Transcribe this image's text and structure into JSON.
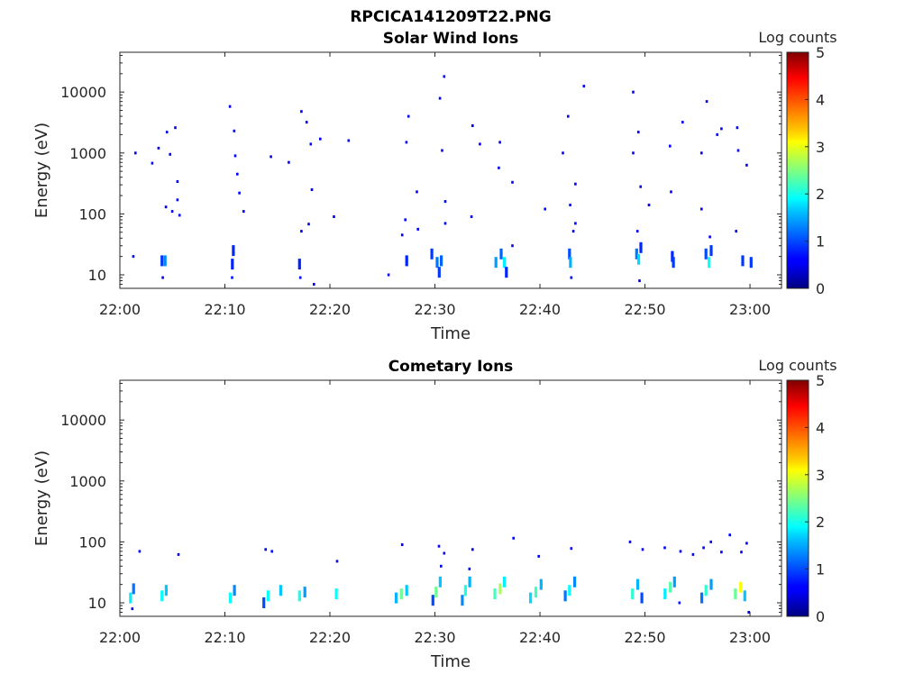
{
  "figure": {
    "title": "RPCICA141209T22.PNG"
  },
  "chart_data": [
    {
      "type": "heatmap",
      "title": "Solar Wind Ions",
      "xlabel": "Time",
      "ylabel": "Energy (eV)",
      "x_ticks": [
        "22:00",
        "22:10",
        "22:20",
        "22:30",
        "22:40",
        "22:50",
        "23:00"
      ],
      "x_tick_minutes": [
        0,
        10,
        20,
        30,
        40,
        50,
        60
      ],
      "xlim_minutes": [
        0,
        63
      ],
      "y_scale": "log",
      "y_ticks": [
        "10",
        "100",
        "1000",
        "10000"
      ],
      "y_tick_values": [
        10,
        100,
        1000,
        10000
      ],
      "ylim": [
        6,
        45000
      ],
      "colorbar": {
        "label": "Log counts",
        "ticks": [
          "0",
          "1",
          "2",
          "3",
          "4",
          "5"
        ],
        "range": [
          0,
          5
        ],
        "colormap": "jet"
      },
      "cells": [
        [
          1.3,
          20,
          0.7
        ],
        [
          4.0,
          17,
          0.9
        ],
        [
          4.3,
          17,
          1.3
        ],
        [
          4.1,
          9,
          0.6
        ],
        [
          10.7,
          15,
          0.8
        ],
        [
          10.7,
          9,
          0.7
        ],
        [
          10.8,
          25,
          0.8
        ],
        [
          17.1,
          15,
          0.8
        ],
        [
          17.2,
          9,
          0.6
        ],
        [
          18.5,
          7,
          0.6
        ],
        [
          25.6,
          10,
          0.6
        ],
        [
          27.3,
          17,
          0.8
        ],
        [
          29.7,
          22,
          0.9
        ],
        [
          30.2,
          16,
          1.2
        ],
        [
          30.4,
          11,
          0.9
        ],
        [
          30.6,
          17,
          1.1
        ],
        [
          35.8,
          16,
          1.4
        ],
        [
          36.3,
          22,
          1.1
        ],
        [
          36.6,
          16,
          1.8
        ],
        [
          36.8,
          11,
          0.8
        ],
        [
          42.8,
          22,
          1.0
        ],
        [
          42.9,
          16,
          1.5
        ],
        [
          43.0,
          9,
          0.6
        ],
        [
          49.2,
          22,
          1.2
        ],
        [
          49.4,
          18,
          1.7
        ],
        [
          49.6,
          28,
          0.8
        ],
        [
          49.5,
          8,
          0.4
        ],
        [
          52.6,
          20,
          0.8
        ],
        [
          52.7,
          16,
          0.9
        ],
        [
          55.8,
          22,
          1.0
        ],
        [
          56.1,
          16,
          1.9
        ],
        [
          56.3,
          25,
          0.9
        ],
        [
          59.3,
          17,
          0.9
        ],
        [
          60.1,
          16,
          0.9
        ],
        [
          1.5,
          1000,
          0.6
        ],
        [
          3.1,
          680,
          0.6
        ],
        [
          3.7,
          1200,
          0.6
        ],
        [
          4.8,
          950,
          0.6
        ],
        [
          4.5,
          2200,
          0.6
        ],
        [
          5.3,
          2600,
          0.6
        ],
        [
          5.5,
          340,
          0.6
        ],
        [
          5.5,
          170,
          0.6
        ],
        [
          4.4,
          130,
          0.6
        ],
        [
          5.0,
          110,
          0.6
        ],
        [
          5.7,
          95,
          0.6
        ],
        [
          10.5,
          5800,
          0.6
        ],
        [
          10.9,
          2300,
          0.6
        ],
        [
          11.0,
          900,
          0.6
        ],
        [
          11.2,
          450,
          0.6
        ],
        [
          11.4,
          220,
          0.6
        ],
        [
          11.8,
          110,
          0.6
        ],
        [
          14.4,
          870,
          0.6
        ],
        [
          16.1,
          700,
          0.6
        ],
        [
          17.3,
          4800,
          0.6
        ],
        [
          17.8,
          3200,
          0.6
        ],
        [
          18.2,
          1400,
          0.6
        ],
        [
          19.1,
          1700,
          0.6
        ],
        [
          20.4,
          90,
          0.6
        ],
        [
          21.8,
          1600,
          0.6
        ],
        [
          18.3,
          250,
          0.6
        ],
        [
          27.5,
          4000,
          0.6
        ],
        [
          27.3,
          1500,
          0.6
        ],
        [
          28.3,
          230,
          0.6
        ],
        [
          30.5,
          7900,
          0.6
        ],
        [
          30.9,
          18000,
          0.6
        ],
        [
          30.7,
          1100,
          0.6
        ],
        [
          31.0,
          160,
          0.6
        ],
        [
          33.6,
          2800,
          0.6
        ],
        [
          34.3,
          1400,
          0.6
        ],
        [
          33.5,
          90,
          0.6
        ],
        [
          36.2,
          1500,
          0.6
        ],
        [
          36.1,
          570,
          0.6
        ],
        [
          37.4,
          330,
          0.6
        ],
        [
          37.4,
          30,
          0.6
        ],
        [
          42.2,
          1000,
          0.6
        ],
        [
          42.7,
          4000,
          0.6
        ],
        [
          43.4,
          310,
          0.6
        ],
        [
          42.9,
          140,
          0.6
        ],
        [
          44.2,
          12500,
          0.6
        ],
        [
          40.5,
          120,
          0.6
        ],
        [
          48.9,
          10000,
          0.6
        ],
        [
          48.9,
          1000,
          0.6
        ],
        [
          49.4,
          2200,
          0.6
        ],
        [
          49.6,
          280,
          0.6
        ],
        [
          50.4,
          140,
          0.6
        ],
        [
          52.4,
          1300,
          0.6
        ],
        [
          52.5,
          230,
          0.6
        ],
        [
          53.6,
          3200,
          0.6
        ],
        [
          55.4,
          1000,
          0.6
        ],
        [
          55.9,
          7000,
          0.6
        ],
        [
          56.9,
          2000,
          0.6
        ],
        [
          57.3,
          2500,
          0.6
        ],
        [
          58.8,
          2600,
          0.6
        ],
        [
          58.9,
          1100,
          0.6
        ],
        [
          59.7,
          630,
          0.6
        ],
        [
          58.7,
          52,
          0.6
        ],
        [
          56.2,
          42,
          0.6
        ],
        [
          55.4,
          120,
          0.6
        ],
        [
          49.3,
          52,
          0.6
        ],
        [
          43.2,
          52,
          0.6
        ],
        [
          43.4,
          70,
          0.6
        ],
        [
          28.4,
          56,
          0.6
        ],
        [
          27.2,
          80,
          0.6
        ],
        [
          26.9,
          45,
          0.6
        ],
        [
          31.0,
          70,
          0.6
        ],
        [
          18.0,
          68,
          0.6
        ],
        [
          17.3,
          52,
          0.6
        ]
      ]
    },
    {
      "type": "heatmap",
      "title": "Cometary Ions",
      "xlabel": "Time",
      "ylabel": "Energy (eV)",
      "x_ticks": [
        "22:00",
        "22:10",
        "22:20",
        "22:30",
        "22:40",
        "22:50",
        "23:00"
      ],
      "x_tick_minutes": [
        0,
        10,
        20,
        30,
        40,
        50,
        60
      ],
      "xlim_minutes": [
        0,
        63
      ],
      "y_scale": "log",
      "y_ticks": [
        "10",
        "100",
        "1000",
        "10000"
      ],
      "y_tick_values": [
        10,
        100,
        1000,
        10000
      ],
      "ylim": [
        6,
        45000
      ],
      "colorbar": {
        "label": "Log counts",
        "ticks": [
          "0",
          "1",
          "2",
          "3",
          "4",
          "5"
        ],
        "range": [
          0,
          5
        ],
        "colormap": "jet"
      },
      "cells": [
        [
          1.0,
          12,
          1.8
        ],
        [
          1.3,
          17,
          1.2
        ],
        [
          1.2,
          8,
          0.6
        ],
        [
          4.0,
          13,
          1.9
        ],
        [
          4.4,
          16,
          1.6
        ],
        [
          10.5,
          12,
          1.9
        ],
        [
          10.9,
          16,
          1.3
        ],
        [
          13.7,
          10,
          1.0
        ],
        [
          14.1,
          13,
          1.9
        ],
        [
          15.3,
          16,
          1.6
        ],
        [
          17.1,
          13,
          2.0
        ],
        [
          17.6,
          15,
          1.4
        ],
        [
          20.6,
          14,
          1.9
        ],
        [
          26.3,
          12,
          1.5
        ],
        [
          26.8,
          14,
          2.4
        ],
        [
          27.3,
          16,
          1.6
        ],
        [
          29.8,
          11,
          1.0
        ],
        [
          30.1,
          15,
          2.4
        ],
        [
          30.5,
          22,
          1.6
        ],
        [
          32.6,
          11,
          1.3
        ],
        [
          32.9,
          16,
          2.0
        ],
        [
          33.3,
          22,
          1.5
        ],
        [
          35.7,
          14,
          2.2
        ],
        [
          36.2,
          17,
          2.7
        ],
        [
          36.6,
          22,
          1.8
        ],
        [
          39.1,
          12,
          1.7
        ],
        [
          39.6,
          15,
          2.2
        ],
        [
          40.1,
          20,
          1.5
        ],
        [
          42.4,
          13,
          1.2
        ],
        [
          42.8,
          16,
          1.9
        ],
        [
          43.3,
          22,
          1.3
        ],
        [
          48.8,
          14,
          2.1
        ],
        [
          49.3,
          20,
          1.5
        ],
        [
          49.7,
          12,
          1.0
        ],
        [
          51.9,
          14,
          1.8
        ],
        [
          52.4,
          18,
          2.3
        ],
        [
          52.8,
          22,
          1.4
        ],
        [
          55.4,
          12,
          1.2
        ],
        [
          55.8,
          16,
          2.1
        ],
        [
          56.3,
          20,
          1.4
        ],
        [
          58.6,
          14,
          2.4
        ],
        [
          59.1,
          18,
          3.1
        ],
        [
          59.5,
          13,
          1.6
        ],
        [
          59.9,
          7,
          0.5
        ],
        [
          53.3,
          10,
          0.7
        ],
        [
          1.9,
          70,
          0.6
        ],
        [
          5.6,
          62,
          0.6
        ],
        [
          13.9,
          75,
          0.6
        ],
        [
          14.5,
          70,
          0.6
        ],
        [
          20.7,
          48,
          0.6
        ],
        [
          26.9,
          90,
          0.6
        ],
        [
          30.4,
          85,
          0.6
        ],
        [
          30.9,
          65,
          0.6
        ],
        [
          30.6,
          40,
          0.6
        ],
        [
          33.3,
          36,
          0.6
        ],
        [
          33.6,
          75,
          0.6
        ],
        [
          37.5,
          115,
          0.6
        ],
        [
          39.9,
          58,
          0.6
        ],
        [
          43.0,
          78,
          0.6
        ],
        [
          48.6,
          100,
          0.6
        ],
        [
          49.8,
          75,
          0.6
        ],
        [
          51.9,
          80,
          0.6
        ],
        [
          53.4,
          70,
          0.6
        ],
        [
          54.6,
          62,
          0.6
        ],
        [
          55.6,
          80,
          0.6
        ],
        [
          56.3,
          100,
          0.6
        ],
        [
          58.1,
          130,
          0.6
        ],
        [
          59.2,
          68,
          0.6
        ],
        [
          59.7,
          95,
          0.6
        ],
        [
          57.3,
          68,
          0.6
        ]
      ]
    }
  ]
}
